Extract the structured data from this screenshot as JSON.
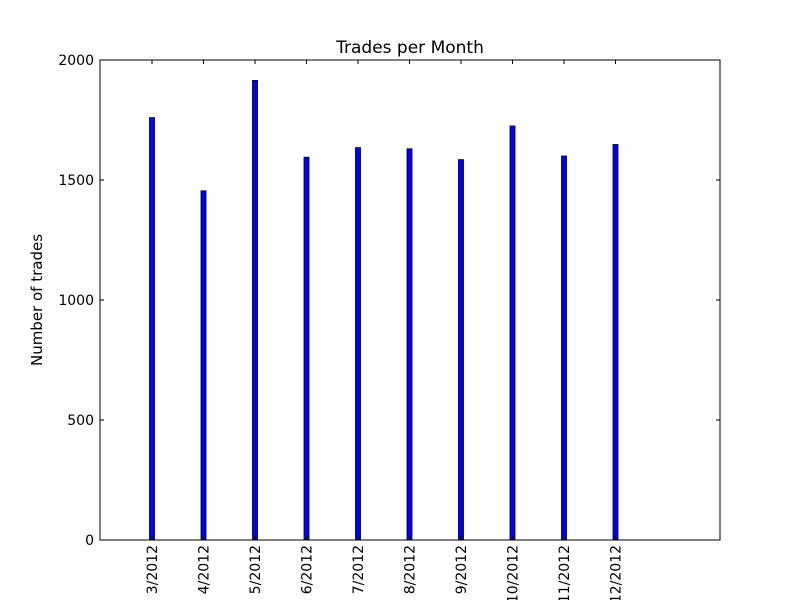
{
  "chart_data": {
    "type": "bar",
    "title": "Trades per Month",
    "xlabel": "",
    "ylabel": "Number of trades",
    "categories": [
      "3/2012",
      "4/2012",
      "5/2012",
      "6/2012",
      "7/2012",
      "8/2012",
      "9/2012",
      "10/2012",
      "11/2012",
      "12/2012"
    ],
    "values": [
      1760,
      1455,
      1915,
      1595,
      1635,
      1630,
      1585,
      1725,
      1600,
      1648
    ],
    "ylim": [
      0,
      2000
    ],
    "yticks": [
      0,
      500,
      1000,
      1500,
      2000
    ],
    "bar_color": "#0000ff",
    "grid": false
  }
}
